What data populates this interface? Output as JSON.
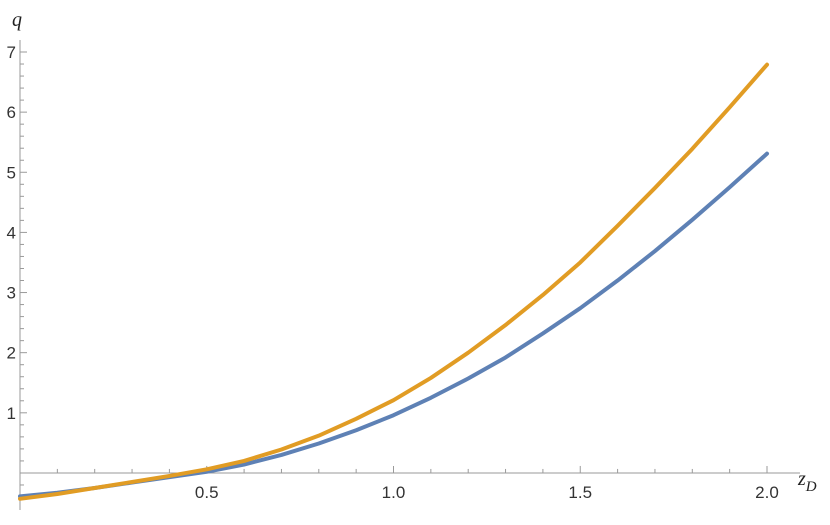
{
  "chart_data": {
    "type": "line",
    "title": "",
    "xlabel": "z",
    "xlabel_subscript": "D",
    "ylabel": "q",
    "xlim": [
      0.0,
      2.0
    ],
    "ylim": [
      -0.4,
      7.0
    ],
    "x_ticks": [
      0.5,
      1.0,
      1.5,
      2.0
    ],
    "x_tick_labels": [
      "0.5",
      "1.0",
      "1.5",
      "2.0"
    ],
    "y_ticks": [
      1,
      2,
      3,
      4,
      5,
      6,
      7
    ],
    "y_tick_labels": [
      "1",
      "2",
      "3",
      "4",
      "5",
      "6",
      "7"
    ],
    "grid": false,
    "series": [
      {
        "color": "#5e81b5",
        "x": [
          0.0,
          0.1,
          0.2,
          0.3,
          0.4,
          0.5,
          0.6,
          0.7,
          0.8,
          0.9,
          1.0,
          1.1,
          1.2,
          1.3,
          1.4,
          1.5,
          1.6,
          1.7,
          1.8,
          1.9,
          2.0
        ],
        "y": [
          -0.39,
          -0.33,
          -0.25,
          -0.16,
          -0.07,
          0.02,
          0.14,
          0.3,
          0.49,
          0.71,
          0.96,
          1.25,
          1.57,
          1.92,
          2.32,
          2.74,
          3.2,
          3.69,
          4.21,
          4.75,
          5.31
        ]
      },
      {
        "color": "#e19c24",
        "x": [
          0.0,
          0.1,
          0.2,
          0.3,
          0.4,
          0.5,
          0.6,
          0.7,
          0.8,
          0.9,
          1.0,
          1.1,
          1.2,
          1.3,
          1.4,
          1.5,
          1.6,
          1.7,
          1.8,
          1.9,
          2.0
        ],
        "y": [
          -0.43,
          -0.35,
          -0.25,
          -0.15,
          -0.05,
          0.06,
          0.2,
          0.39,
          0.62,
          0.9,
          1.21,
          1.58,
          2.0,
          2.46,
          2.96,
          3.5,
          4.11,
          4.74,
          5.39,
          6.08,
          6.79
        ]
      }
    ]
  }
}
